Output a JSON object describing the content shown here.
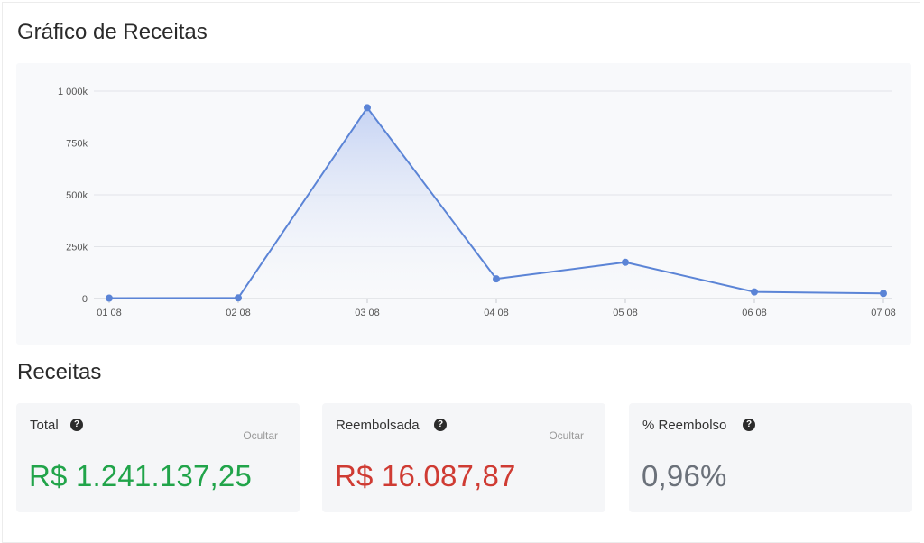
{
  "chart_section": {
    "title": "Gráfico de Receitas"
  },
  "chart_data": {
    "type": "area",
    "categories": [
      "01 08",
      "02 08",
      "03 08",
      "04 08",
      "05 08",
      "06 08",
      "07 08"
    ],
    "series": [
      {
        "values": [
          2000,
          3000,
          920000,
          95000,
          175000,
          32000,
          25000
        ]
      }
    ],
    "y_ticks": [
      {
        "value": 0,
        "label": "0"
      },
      {
        "value": 250000,
        "label": "250k"
      },
      {
        "value": 500000,
        "label": "500k"
      },
      {
        "value": 750000,
        "label": "750k"
      },
      {
        "value": 1000000,
        "label": "1 000k"
      }
    ],
    "ylim": [
      0,
      1000000
    ],
    "grid": true,
    "colors": {
      "line": "#5b84d6",
      "point": "#5b84d6",
      "fill_top": "#c3d1f3",
      "fill_bottom": "#f8f9fb"
    }
  },
  "revenue_section": {
    "title": "Receitas"
  },
  "cards": {
    "total": {
      "label": "Total",
      "hide_label": "Ocultar",
      "value": "R$ 1.241.137,25",
      "color": "#21a44a"
    },
    "refunded": {
      "label": "Reembolsada",
      "hide_label": "Ocultar",
      "value": "R$ 16.087,87",
      "color": "#cf3b33"
    },
    "refund_pct": {
      "label": "% Reembolso",
      "value": "0,96%",
      "color": "#6b717a"
    }
  },
  "icons": {
    "help": "question-circle-icon"
  }
}
